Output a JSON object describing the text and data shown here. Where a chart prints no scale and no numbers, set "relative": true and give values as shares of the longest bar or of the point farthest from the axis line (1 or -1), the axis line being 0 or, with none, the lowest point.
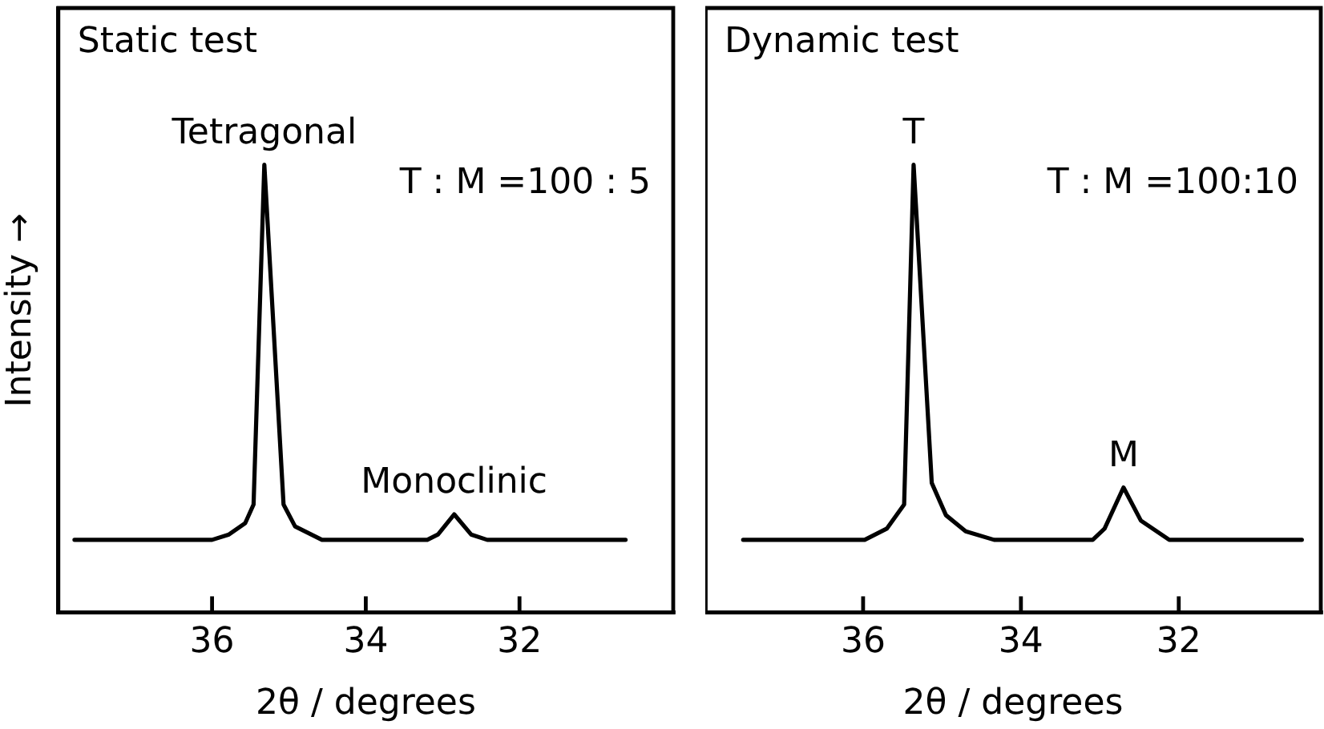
{
  "chart_data": [
    {
      "type": "line",
      "title": "Static test",
      "xlabel": "2θ / degrees",
      "ylabel": "Intensity →",
      "relative": true,
      "xlim": [
        38,
        30
      ],
      "xticks": [
        36,
        34,
        32
      ],
      "tick_labels": "x",
      "legend": false,
      "grid": false,
      "marker": "none",
      "annotations": [
        {
          "text": "Tetragonal",
          "x": 35.32,
          "y": 1
        },
        "T : M =100 : 5",
        {
          "text": "Monoclinic",
          "x": 32.85,
          "y": 0.219
        }
      ],
      "series": [
        {
          "color": "#000000",
          "x": [
            37.79,
            36.0,
            35.78,
            35.57,
            35.46,
            35.32,
            35.07,
            34.92,
            34.57,
            33.2,
            33.06,
            32.85,
            32.63,
            32.42,
            30.62
          ],
          "values": [
            0.162,
            0.162,
            0.174,
            0.199,
            0.241,
            1.0,
            0.241,
            0.192,
            0.162,
            0.162,
            0.174,
            0.219,
            0.174,
            0.162,
            0.162
          ]
        }
      ]
    },
    {
      "type": "line",
      "title": "Dynamic test",
      "xlabel": "2θ / degrees",
      "relative": true,
      "xlim": [
        38,
        30.2
      ],
      "xticks": [
        36,
        34,
        32
      ],
      "tick_labels": "x",
      "legend": false,
      "grid": false,
      "marker": "none",
      "annotations": [
        {
          "text": "T",
          "x": 35.36,
          "y": 1
        },
        "T : M =100:10",
        {
          "text": "M",
          "x": 32.7,
          "y": 0.279
        }
      ],
      "series": [
        {
          "color": "#000000",
          "x": [
            37.52,
            35.98,
            35.7,
            35.48,
            35.36,
            35.13,
            34.95,
            34.7,
            34.34,
            33.09,
            32.94,
            32.7,
            32.48,
            32.12,
            30.44
          ],
          "values": [
            0.162,
            0.162,
            0.187,
            0.241,
            1.0,
            0.289,
            0.217,
            0.181,
            0.162,
            0.162,
            0.187,
            0.279,
            0.205,
            0.162,
            0.162
          ]
        }
      ]
    }
  ]
}
